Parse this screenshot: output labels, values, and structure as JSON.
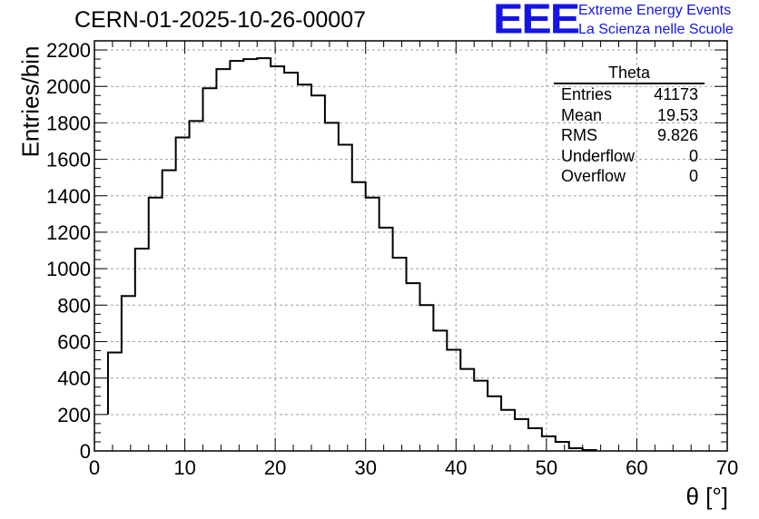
{
  "header": {
    "title": "CERN-01-2025-10-26-00007",
    "logo_text": "EEE",
    "logo_line1": "Extreme Energy Events",
    "logo_line2": "La Scienza nelle Scuole"
  },
  "stats": {
    "name": "Theta",
    "rows": [
      {
        "label": "Entries",
        "value": "41173"
      },
      {
        "label": "Mean",
        "value": "19.53"
      },
      {
        "label": "RMS",
        "value": "9.826"
      },
      {
        "label": "Underflow",
        "value": "0"
      },
      {
        "label": "Overflow",
        "value": "0"
      }
    ]
  },
  "chart_data": {
    "type": "histogram",
    "title": "CERN-01-2025-10-26-00007",
    "xlabel": "θ [°]",
    "ylabel": "Entries/bin",
    "xlim": [
      0,
      70
    ],
    "ylim": [
      0,
      2250
    ],
    "xticks": [
      0,
      10,
      20,
      30,
      40,
      50,
      60,
      70
    ],
    "yticks": [
      0,
      200,
      400,
      600,
      800,
      1000,
      1200,
      1400,
      1600,
      1800,
      2000,
      2200
    ],
    "grid": true,
    "line_color": "#000000",
    "bin_edges_start": 1.5,
    "bin_width": 1.5,
    "values": [
      540,
      850,
      1110,
      1390,
      1540,
      1720,
      1810,
      1990,
      2095,
      2140,
      2150,
      2155,
      2110,
      2075,
      2010,
      1950,
      1800,
      1680,
      1475,
      1390,
      1225,
      1060,
      920,
      800,
      660,
      555,
      450,
      385,
      300,
      225,
      175,
      125,
      80,
      50,
      15,
      5
    ],
    "first_edge_value": 200
  }
}
